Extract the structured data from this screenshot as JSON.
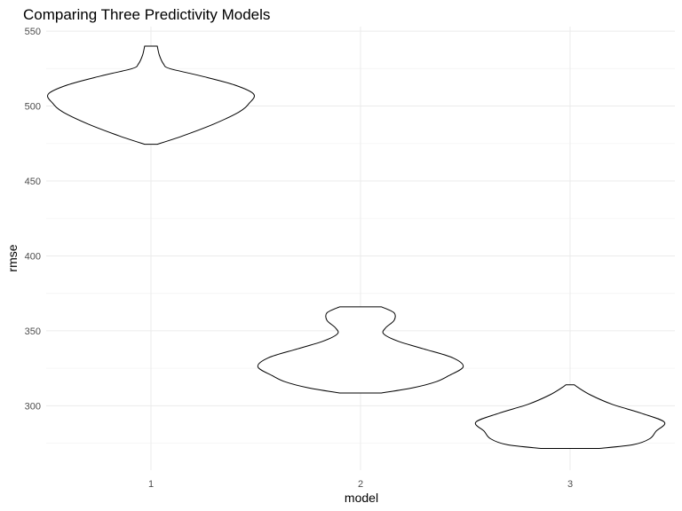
{
  "chart_data": {
    "type": "violin",
    "title": "Comparing Three Predictivity Models",
    "xlabel": "model",
    "ylabel": "rmse",
    "categories": [
      "1",
      "2",
      "3"
    ],
    "ylim": [
      257,
      553
    ],
    "y_ticks": [
      300,
      350,
      400,
      450,
      500,
      550
    ],
    "grid": true,
    "legend": "none",
    "series": [
      {
        "model": "1",
        "min": 474.5,
        "max": 540,
        "density_profile": [
          {
            "y": 474.5,
            "half_width": 0.03
          },
          {
            "y": 480,
            "half_width": 0.15
          },
          {
            "y": 488,
            "half_width": 0.3
          },
          {
            "y": 496,
            "half_width": 0.42
          },
          {
            "y": 502,
            "half_width": 0.47
          },
          {
            "y": 508,
            "half_width": 0.49
          },
          {
            "y": 514,
            "half_width": 0.4
          },
          {
            "y": 520,
            "half_width": 0.24
          },
          {
            "y": 525,
            "half_width": 0.09
          },
          {
            "y": 528,
            "half_width": 0.06
          },
          {
            "y": 534,
            "half_width": 0.04
          },
          {
            "y": 540,
            "half_width": 0.03
          }
        ]
      },
      {
        "model": "2",
        "min": 308.5,
        "max": 366,
        "density_profile": [
          {
            "y": 308.5,
            "half_width": 0.1
          },
          {
            "y": 312,
            "half_width": 0.25
          },
          {
            "y": 316,
            "half_width": 0.36
          },
          {
            "y": 320,
            "half_width": 0.42
          },
          {
            "y": 326,
            "half_width": 0.49
          },
          {
            "y": 332,
            "half_width": 0.44
          },
          {
            "y": 338,
            "half_width": 0.3
          },
          {
            "y": 343,
            "half_width": 0.18
          },
          {
            "y": 348,
            "half_width": 0.11
          },
          {
            "y": 352,
            "half_width": 0.12
          },
          {
            "y": 357,
            "half_width": 0.16
          },
          {
            "y": 362,
            "half_width": 0.16
          },
          {
            "y": 366,
            "half_width": 0.1
          }
        ]
      },
      {
        "model": "3",
        "min": 271.5,
        "max": 314,
        "density_profile": [
          {
            "y": 271.5,
            "half_width": 0.14
          },
          {
            "y": 274,
            "half_width": 0.3
          },
          {
            "y": 278,
            "half_width": 0.38
          },
          {
            "y": 283,
            "half_width": 0.41
          },
          {
            "y": 289,
            "half_width": 0.45
          },
          {
            "y": 295,
            "half_width": 0.34
          },
          {
            "y": 301,
            "half_width": 0.2
          },
          {
            "y": 307,
            "half_width": 0.1
          },
          {
            "y": 312,
            "half_width": 0.04
          },
          {
            "y": 314,
            "half_width": 0.02
          }
        ]
      }
    ]
  }
}
